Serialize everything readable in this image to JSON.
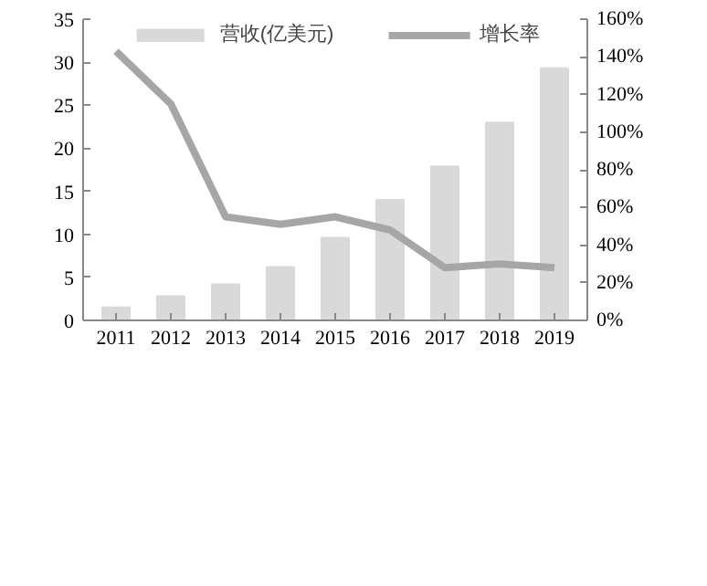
{
  "chart_data": {
    "type": "bar",
    "categories": [
      "2011",
      "2012",
      "2013",
      "2014",
      "2015",
      "2016",
      "2017",
      "2018",
      "2019"
    ],
    "series": [
      {
        "name": "营收(亿美元)",
        "color": "#d9d9d9",
        "values": [
          1.5,
          2.8,
          4.2,
          6.2,
          9.6,
          14.0,
          17.9,
          23.0,
          29.3
        ]
      },
      {
        "name": "增长率",
        "type": "line",
        "axis": "y2",
        "color": "#a6a6a6",
        "values": [
          143,
          115,
          55,
          51,
          55,
          48,
          28,
          30,
          28
        ]
      }
    ],
    "ylim": [
      0,
      35
    ],
    "yticks": [
      0,
      5,
      10,
      15,
      20,
      25,
      30,
      35
    ],
    "y2lim": [
      0,
      160
    ],
    "y2ticks": [
      {
        "value": 0,
        "label": "0%"
      },
      {
        "value": 20,
        "label": "20%"
      },
      {
        "value": 40,
        "label": "40%"
      },
      {
        "value": 60,
        "label": "60%"
      },
      {
        "value": 80,
        "label": "80%"
      },
      {
        "value": 100,
        "label": "100%"
      },
      {
        "value": 120,
        "label": "120%"
      },
      {
        "value": 140,
        "label": "140%"
      },
      {
        "value": 160,
        "label": "160%"
      }
    ],
    "grid": false,
    "legend": "top",
    "marker": "none",
    "line_style": "solid"
  }
}
